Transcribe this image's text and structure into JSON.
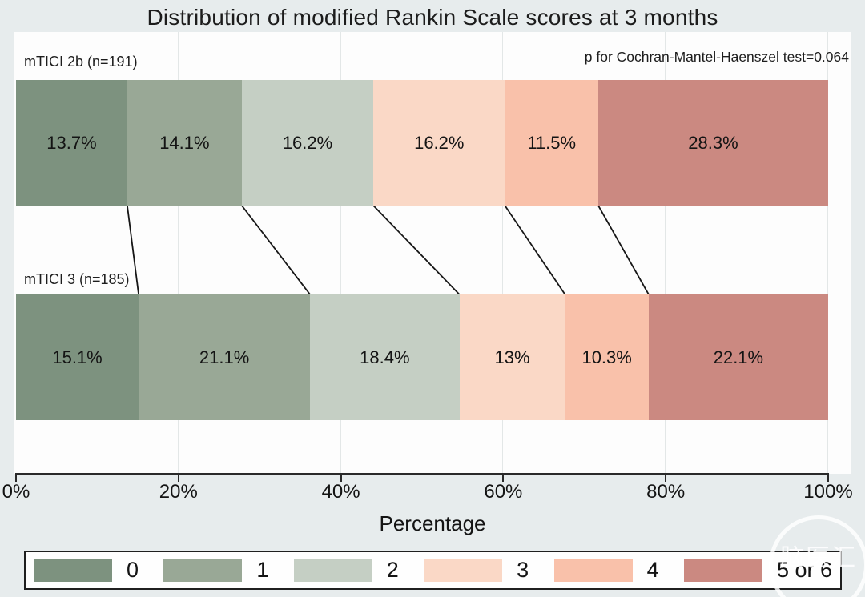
{
  "title": "Distribution of modified Rankin Scale scores at 3 months",
  "annotation": "p for Cochran-Mantel-Haenszel test=0.064",
  "watermark": "脑医汇",
  "colors": {
    "page_background": "#e7eced",
    "plot_background": "#fdfdfd",
    "gridline": "#e3e7e7",
    "axis": "#2a2a2a",
    "connector_line": "#161616",
    "segment_colors": [
      "#7d927f",
      "#99a896",
      "#c5cfc4",
      "#fad8c6",
      "#f9c1aa",
      "#cb8981"
    ]
  },
  "chart_data": {
    "type": "bar",
    "variant": "horizontal-stacked-percentage",
    "title": "Distribution of modified Rankin Scale scores at 3 months",
    "xlabel": "Percentage",
    "xlim": [
      0,
      100
    ],
    "tick_values": [
      0,
      20,
      40,
      60,
      80,
      100
    ],
    "tick_labels": [
      "0%",
      "20%",
      "40%",
      "60%",
      "80%",
      "100%"
    ],
    "grid_values": [
      20,
      40,
      60,
      80,
      100
    ],
    "grid": true,
    "legend_position": "bottom",
    "categories": [
      "0",
      "1",
      "2",
      "3",
      "4",
      "5 or 6"
    ],
    "series": [
      {
        "name": "mTICI 2b (n=191)",
        "values": [
          13.7,
          14.1,
          16.2,
          16.2,
          11.5,
          28.3
        ],
        "labels": [
          "13.7%",
          "14.1%",
          "16.2%",
          "16.2%",
          "11.5%",
          "28.3%"
        ]
      },
      {
        "name": "mTICI 3 (n=185)",
        "values": [
          15.1,
          21.1,
          18.4,
          13,
          10.3,
          22.1
        ],
        "labels": [
          "15.1%",
          "21.1%",
          "18.4%",
          "13%",
          "10.3%",
          "22.1%"
        ]
      }
    ],
    "annotation": "p for Cochran-Mantel-Haenszel test=0.064",
    "connectors_between_bars": true
  }
}
